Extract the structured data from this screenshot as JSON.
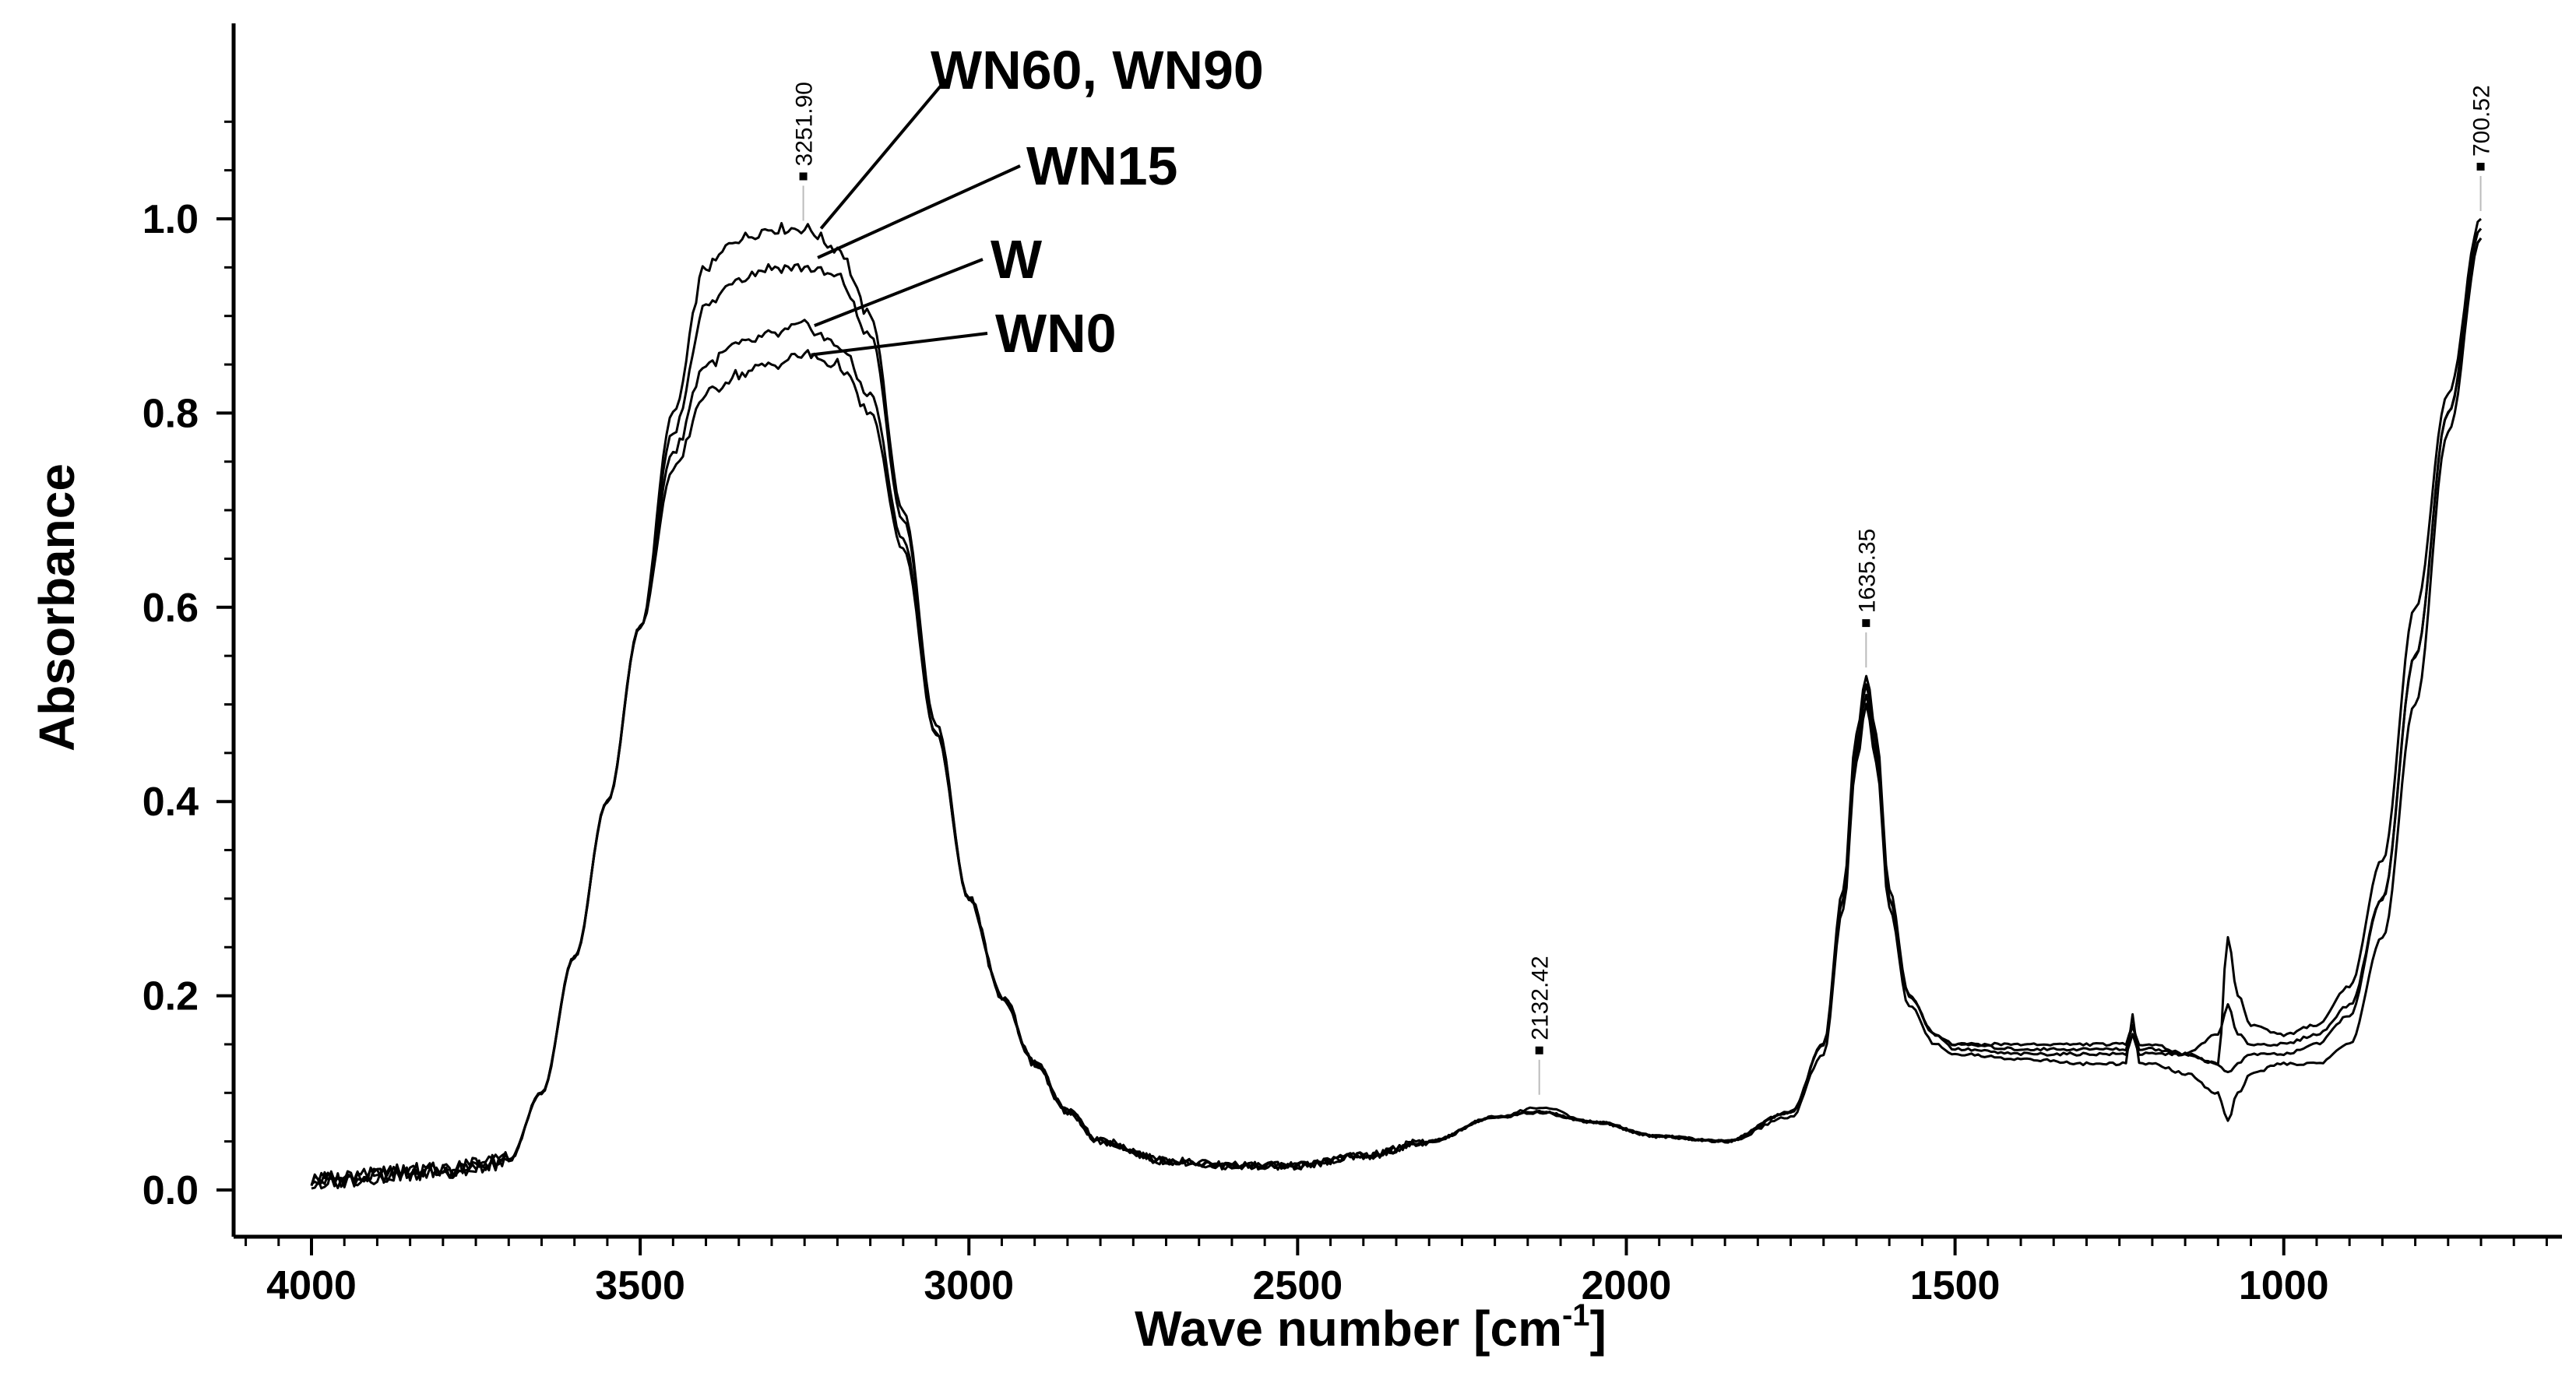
{
  "chart_data": {
    "type": "line",
    "title": "",
    "xlabel": "Wave number [cm",
    "xlabel_sup": "-1",
    "xlabel_tail": "]",
    "ylabel": "Absorbance",
    "xlim": [
      4000,
      700
    ],
    "ylim": [
      0.0,
      1.0
    ],
    "x_reversed": true,
    "x_ticks": [
      "4000",
      "3500",
      "3000",
      "2500",
      "2000",
      "1500",
      "1000"
    ],
    "y_ticks": [
      "0.0",
      "0.2",
      "0.4",
      "0.6",
      "0.8",
      "1.0"
    ],
    "grid": false,
    "line_color": "#000000",
    "peak_labels": [
      {
        "x": 3251.9,
        "y": 0.99,
        "text": "3251.90"
      },
      {
        "x": 2132.42,
        "y": 0.09,
        "text": "2132.42"
      },
      {
        "x": 1635.35,
        "y": 0.53,
        "text": "1635.35"
      },
      {
        "x": 700.52,
        "y": 1.0,
        "text": "700.52"
      }
    ],
    "series": [
      {
        "name": "WN60, WN90",
        "x": [
          4000,
          3800,
          3700,
          3650,
          3600,
          3550,
          3500,
          3450,
          3400,
          3350,
          3300,
          3250,
          3200,
          3150,
          3100,
          3050,
          3000,
          2950,
          2900,
          2850,
          2800,
          2700,
          2600,
          2500,
          2400,
          2300,
          2200,
          2132,
          2050,
          1950,
          1850,
          1750,
          1700,
          1670,
          1650,
          1635,
          1620,
          1600,
          1570,
          1530,
          1500,
          1400,
          1300,
          1240,
          1230,
          1220,
          1200,
          1150,
          1100,
          1085,
          1070,
          1050,
          1000,
          950,
          900,
          850,
          800,
          750,
          700
        ],
        "y": [
          0.01,
          0.02,
          0.03,
          0.1,
          0.24,
          0.4,
          0.58,
          0.8,
          0.95,
          0.98,
          0.99,
          0.99,
          0.97,
          0.9,
          0.7,
          0.48,
          0.3,
          0.2,
          0.13,
          0.08,
          0.05,
          0.03,
          0.025,
          0.025,
          0.035,
          0.05,
          0.075,
          0.08,
          0.07,
          0.055,
          0.05,
          0.08,
          0.15,
          0.3,
          0.45,
          0.51,
          0.45,
          0.3,
          0.2,
          0.16,
          0.145,
          0.14,
          0.14,
          0.14,
          0.16,
          0.14,
          0.14,
          0.14,
          0.16,
          0.19,
          0.16,
          0.15,
          0.15,
          0.16,
          0.19,
          0.3,
          0.55,
          0.8,
          0.99
        ]
      },
      {
        "name": "WN15",
        "x": [
          4000,
          3800,
          3700,
          3650,
          3600,
          3550,
          3500,
          3450,
          3400,
          3350,
          3300,
          3250,
          3200,
          3150,
          3100,
          3050,
          3000,
          2950,
          2900,
          2850,
          2800,
          2700,
          2600,
          2500,
          2400,
          2300,
          2200,
          2132,
          2050,
          1950,
          1850,
          1750,
          1700,
          1670,
          1650,
          1635,
          1620,
          1600,
          1570,
          1530,
          1500,
          1400,
          1300,
          1240,
          1230,
          1220,
          1200,
          1150,
          1100,
          1085,
          1070,
          1050,
          1000,
          950,
          900,
          850,
          800,
          750,
          700
        ],
        "y": [
          0.01,
          0.02,
          0.03,
          0.1,
          0.24,
          0.4,
          0.58,
          0.78,
          0.91,
          0.94,
          0.95,
          0.95,
          0.94,
          0.88,
          0.69,
          0.48,
          0.3,
          0.2,
          0.13,
          0.08,
          0.05,
          0.03,
          0.025,
          0.025,
          0.035,
          0.05,
          0.075,
          0.08,
          0.07,
          0.055,
          0.05,
          0.08,
          0.15,
          0.3,
          0.46,
          0.52,
          0.46,
          0.3,
          0.2,
          0.16,
          0.15,
          0.145,
          0.145,
          0.145,
          0.17,
          0.145,
          0.145,
          0.14,
          0.13,
          0.12,
          0.13,
          0.14,
          0.14,
          0.15,
          0.18,
          0.3,
          0.55,
          0.8,
          0.98
        ]
      },
      {
        "name": "W",
        "x": [
          4000,
          3800,
          3700,
          3650,
          3600,
          3550,
          3500,
          3450,
          3400,
          3350,
          3300,
          3250,
          3200,
          3150,
          3100,
          3050,
          3000,
          2950,
          2900,
          2850,
          2800,
          2700,
          2600,
          2500,
          2400,
          2300,
          2200,
          2132,
          2050,
          1950,
          1850,
          1750,
          1700,
          1670,
          1650,
          1635,
          1620,
          1600,
          1570,
          1530,
          1500,
          1400,
          1300,
          1240,
          1230,
          1220,
          1200,
          1150,
          1100,
          1085,
          1070,
          1050,
          1000,
          950,
          900,
          850,
          800,
          750,
          700
        ],
        "y": [
          0.01,
          0.02,
          0.03,
          0.1,
          0.24,
          0.4,
          0.58,
          0.76,
          0.85,
          0.87,
          0.88,
          0.89,
          0.87,
          0.82,
          0.67,
          0.47,
          0.3,
          0.2,
          0.13,
          0.08,
          0.05,
          0.03,
          0.025,
          0.025,
          0.035,
          0.05,
          0.075,
          0.085,
          0.07,
          0.055,
          0.05,
          0.08,
          0.15,
          0.31,
          0.47,
          0.53,
          0.47,
          0.31,
          0.2,
          0.16,
          0.15,
          0.15,
          0.15,
          0.15,
          0.17,
          0.15,
          0.15,
          0.14,
          0.13,
          0.26,
          0.2,
          0.17,
          0.16,
          0.17,
          0.21,
          0.34,
          0.6,
          0.82,
          1.0
        ]
      },
      {
        "name": "WN0",
        "x": [
          4000,
          3800,
          3700,
          3650,
          3600,
          3550,
          3500,
          3450,
          3400,
          3350,
          3300,
          3250,
          3200,
          3150,
          3100,
          3050,
          3000,
          2950,
          2900,
          2850,
          2800,
          2700,
          2600,
          2500,
          2400,
          2300,
          2200,
          2132,
          2050,
          1950,
          1850,
          1750,
          1700,
          1670,
          1650,
          1635,
          1620,
          1600,
          1570,
          1530,
          1500,
          1400,
          1300,
          1240,
          1230,
          1220,
          1200,
          1150,
          1100,
          1085,
          1070,
          1050,
          1000,
          950,
          900,
          850,
          800,
          750,
          700
        ],
        "y": [
          0.01,
          0.02,
          0.03,
          0.1,
          0.24,
          0.4,
          0.58,
          0.74,
          0.82,
          0.84,
          0.85,
          0.86,
          0.85,
          0.8,
          0.66,
          0.47,
          0.3,
          0.2,
          0.13,
          0.08,
          0.05,
          0.03,
          0.025,
          0.025,
          0.035,
          0.05,
          0.075,
          0.08,
          0.07,
          0.055,
          0.05,
          0.075,
          0.14,
          0.29,
          0.44,
          0.5,
          0.44,
          0.29,
          0.19,
          0.15,
          0.14,
          0.135,
          0.13,
          0.13,
          0.18,
          0.13,
          0.13,
          0.12,
          0.1,
          0.07,
          0.1,
          0.12,
          0.13,
          0.13,
          0.15,
          0.26,
          0.5,
          0.78,
          0.98
        ]
      }
    ],
    "callouts": [
      {
        "text": "WN60, WN90",
        "series": "WN60, WN90",
        "x": 3225,
        "y": 0.99
      },
      {
        "text": "WN15",
        "series": "WN15",
        "x": 3230,
        "y": 0.96
      },
      {
        "text": "W",
        "series": "W",
        "x": 3235,
        "y": 0.89
      },
      {
        "text": "WN0",
        "series": "WN0",
        "x": 3240,
        "y": 0.86
      }
    ]
  }
}
